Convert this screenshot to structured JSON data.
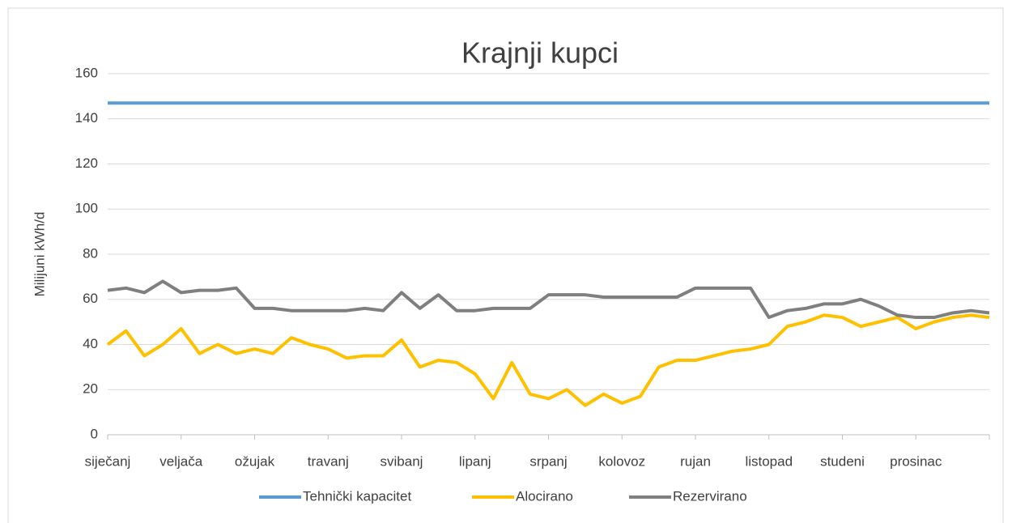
{
  "chart_data": {
    "type": "line",
    "title": "Krajnji kupci",
    "y_label": "Milijuni kWh/d",
    "categories": [
      "siječanj",
      null,
      null,
      null,
      "veljača",
      null,
      null,
      null,
      "ožujak",
      null,
      null,
      null,
      "travanj",
      null,
      null,
      null,
      "svibanj",
      null,
      null,
      null,
      "lipanj",
      null,
      null,
      null,
      "srpanj",
      null,
      null,
      null,
      "kolovoz",
      null,
      null,
      null,
      "rujan",
      null,
      null,
      null,
      "listopad",
      null,
      null,
      null,
      "studeni",
      null,
      null,
      null,
      "prosinac",
      null,
      null,
      null,
      null
    ],
    "series": [
      {
        "name": "Tehnički kapacitet",
        "color": "#5b9bd5",
        "values": [
          147,
          147,
          147,
          147,
          147,
          147,
          147,
          147,
          147,
          147,
          147,
          147,
          147,
          147,
          147,
          147,
          147,
          147,
          147,
          147,
          147,
          147,
          147,
          147,
          147,
          147,
          147,
          147,
          147,
          147,
          147,
          147,
          147,
          147,
          147,
          147,
          147,
          147,
          147,
          147,
          147,
          147,
          147,
          147,
          147,
          147,
          147,
          147,
          147
        ]
      },
      {
        "name": "Alocirano",
        "color": "#ffc000",
        "values": [
          40,
          46,
          35,
          40,
          47,
          36,
          40,
          36,
          38,
          36,
          43,
          40,
          38,
          34,
          35,
          35,
          42,
          30,
          33,
          32,
          27,
          16,
          32,
          18,
          16,
          20,
          13,
          18,
          14,
          17,
          30,
          33,
          33,
          35,
          37,
          38,
          40,
          48,
          50,
          53,
          52,
          48,
          50,
          52,
          47,
          50,
          52,
          53,
          52
        ]
      },
      {
        "name": "Rezervirano",
        "color": "#7f7f7f",
        "values": [
          64,
          65,
          63,
          68,
          63,
          64,
          64,
          65,
          56,
          56,
          55,
          55,
          55,
          55,
          56,
          55,
          63,
          56,
          62,
          55,
          55,
          56,
          56,
          56,
          62,
          62,
          62,
          61,
          61,
          61,
          61,
          61,
          65,
          65,
          65,
          65,
          52,
          55,
          56,
          58,
          58,
          60,
          57,
          53,
          52,
          52,
          54,
          55,
          54
        ]
      }
    ],
    "ylim": [
      0,
      160
    ],
    "yticks": [
      0,
      20,
      40,
      60,
      80,
      100,
      120,
      140,
      160
    ],
    "grid": true,
    "legend": "bottom"
  }
}
